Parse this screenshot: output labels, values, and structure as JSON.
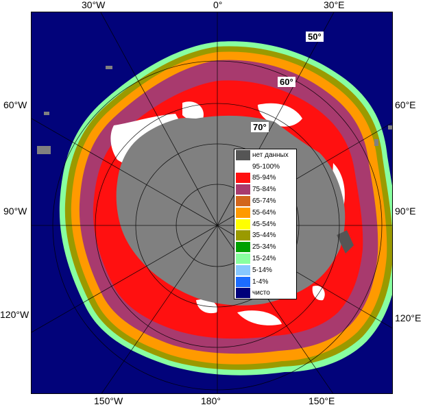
{
  "map": {
    "longitude_labels": {
      "top_left": "30°W",
      "top_center": "0°",
      "top_right": "30°E",
      "left_upper": "60°W",
      "left_middle": "90°W",
      "left_lower": "120°W",
      "right_upper": "60°E",
      "right_middle": "90°E",
      "right_lower": "120°E",
      "bottom_left": "150°W",
      "bottom_center": "180°",
      "bottom_right": "150°E"
    },
    "latitude_labels": [
      "50°",
      "60°",
      "70°"
    ]
  },
  "legend": {
    "items": [
      {
        "label": "нет данных",
        "color": "#555555"
      },
      {
        "label": "95-100%",
        "color": "#ffffff"
      },
      {
        "label": "85-94%",
        "color": "#ff1010"
      },
      {
        "label": "75-84%",
        "color": "#a83a6e"
      },
      {
        "label": "65-74%",
        "color": "#d2661c"
      },
      {
        "label": "55-64%",
        "color": "#ff9a00"
      },
      {
        "label": "45-54%",
        "color": "#ffff00"
      },
      {
        "label": "35-44%",
        "color": "#9a9a00"
      },
      {
        "label": "25-34%",
        "color": "#00a000"
      },
      {
        "label": "15-24%",
        "color": "#88ffa0"
      },
      {
        "label": "5-14%",
        "color": "#88c8ff"
      },
      {
        "label": "1-4%",
        "color": "#1c6cff"
      },
      {
        "label": "чисто",
        "color": "#00007a"
      }
    ]
  },
  "colors": {
    "ocean": "#02037a",
    "land": "#808080",
    "no_data": "#555555",
    "gridline": "#b8b8b8"
  }
}
